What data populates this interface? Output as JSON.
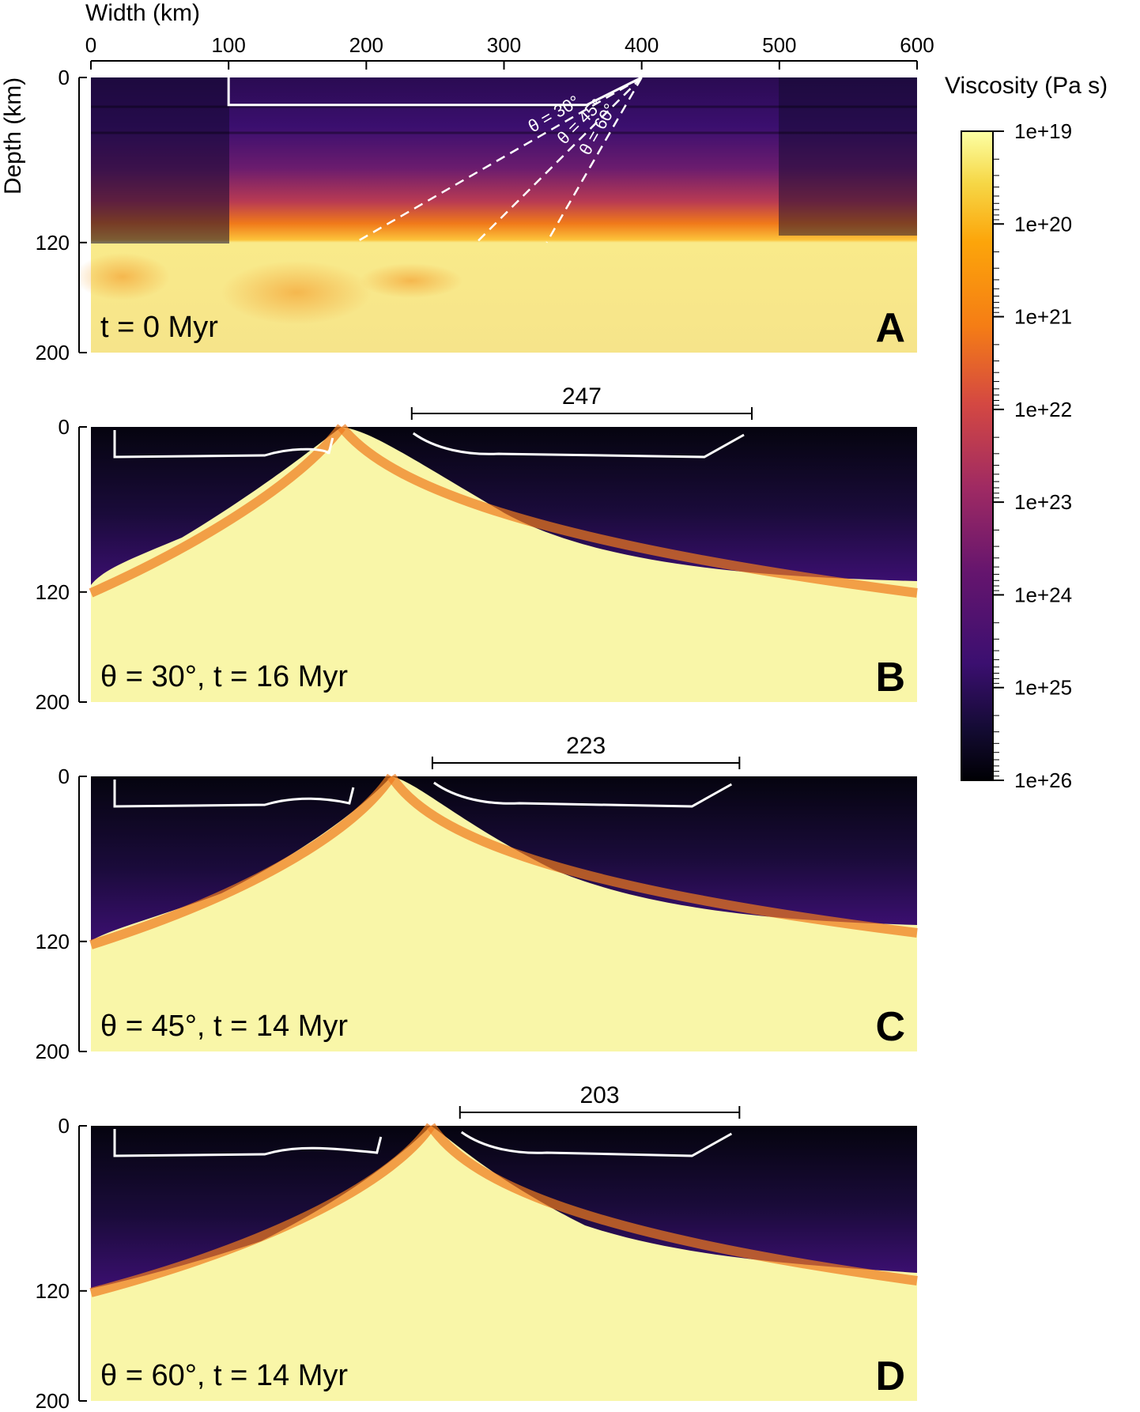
{
  "chart_data": {
    "type": "heatmap",
    "x_axis": {
      "label": "Width (km)",
      "range": [
        0,
        600
      ],
      "ticks": [
        "0",
        "100",
        "200",
        "300",
        "400",
        "500",
        "600"
      ]
    },
    "y_axis": {
      "label": "Depth (km)",
      "range": [
        0,
        200
      ],
      "ticks": [
        "0",
        "120",
        "200"
      ]
    },
    "colorbar": {
      "label": "Viscosity (Pa s)",
      "scale": "log",
      "range": [
        1e+19,
        1e+26
      ],
      "ticks": [
        "1e+19",
        "1e+20",
        "1e+21",
        "1e+22",
        "1e+23",
        "1e+24",
        "1e+25",
        "1e+26"
      ],
      "colormap": "inferno (reversed)"
    },
    "panels": [
      {
        "letter": "A",
        "caption": "t = 0 Myr",
        "weak_zones": [
          {
            "label": "θ = 30°",
            "top_x": 400,
            "bottom_x": 192
          },
          {
            "label": "θ = 45°",
            "top_x": 400,
            "bottom_x": 280
          },
          {
            "label": "θ = 60°",
            "top_x": 400,
            "bottom_x": 331
          }
        ],
        "crust_outline": [
          [
            100,
            0
          ],
          [
            100,
            20
          ],
          [
            360,
            20
          ],
          [
            400,
            0
          ]
        ]
      },
      {
        "letter": "B",
        "caption": "θ = 30°, t = 16 Myr",
        "measure_label": "247",
        "measure_range_km": [
          233,
          480
        ]
      },
      {
        "letter": "C",
        "caption": "θ = 45°, t = 14 Myr",
        "measure_label": "223",
        "measure_range_km": [
          248,
          471
        ]
      },
      {
        "letter": "D",
        "caption": "θ = 60°, t = 14 Myr",
        "measure_label": "203",
        "measure_range_km": [
          268,
          471
        ]
      }
    ]
  }
}
